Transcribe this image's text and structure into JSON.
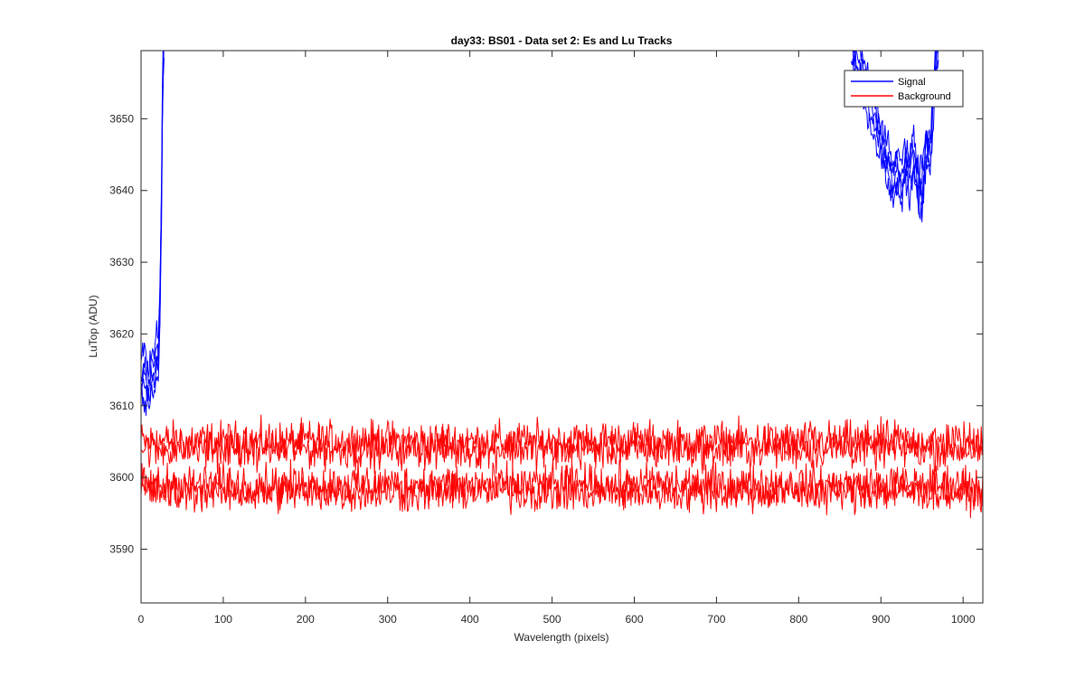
{
  "chart_data": {
    "type": "line",
    "title": "day33: BS01 - Data set 2: Es and Lu Tracks",
    "xlabel": "Wavelength (pixels)",
    "ylabel": "LuTop (ADU)",
    "xlim": [
      0,
      1024
    ],
    "ylim": [
      3582.5,
      3659.5
    ],
    "xticks": [
      0,
      100,
      200,
      300,
      400,
      500,
      600,
      700,
      800,
      900,
      1000
    ],
    "yticks": [
      3590,
      3600,
      3610,
      3620,
      3630,
      3640,
      3650
    ],
    "grid": false,
    "legend_position": "top-right",
    "series": [
      {
        "name": "Signal",
        "color": "#0000ff",
        "tracks": 5,
        "segments": [
          {
            "x": [
              0,
              5,
              10,
              13,
              16,
              19,
              21,
              23,
              25,
              26,
              28
            ],
            "y": [
              3613,
              3614,
              3612,
              3615,
              3614,
              3617,
              3616,
              3624,
              3640,
              3652,
              3662
            ]
          },
          {
            "x": [
              864,
              870,
              880,
              890,
              900,
              905,
              910,
              915,
              920,
              925,
              930,
              935,
              940,
              945,
              950,
              955,
              960,
              965,
              970
            ],
            "y": [
              3662,
              3658,
              3655,
              3651,
              3647,
              3645,
              3643,
              3641,
              3643,
              3641,
              3644,
              3642,
              3645,
              3641,
              3640,
              3646,
              3645,
              3655,
              3662
            ]
          }
        ]
      },
      {
        "name": "Background",
        "color": "#ff0000",
        "tracks": 4,
        "levels": [
          3605,
          3604,
          3599,
          3598
        ],
        "noise": 1.4
      }
    ]
  }
}
